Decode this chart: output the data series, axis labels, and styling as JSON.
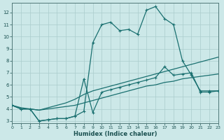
{
  "background_color": "#cce8e8",
  "grid_color": "#aacccc",
  "line_color": "#1a7070",
  "xlabel": "Humidex (Indice chaleur)",
  "xlim": [
    0,
    23
  ],
  "ylim": [
    2.8,
    12.8
  ],
  "xticks": [
    0,
    1,
    2,
    3,
    4,
    5,
    6,
    7,
    8,
    9,
    10,
    11,
    12,
    13,
    14,
    15,
    16,
    17,
    18,
    19,
    20,
    21,
    22,
    23
  ],
  "yticks": [
    3,
    4,
    5,
    6,
    7,
    8,
    9,
    10,
    11,
    12
  ],
  "line_peak_x": [
    0,
    1,
    2,
    3,
    4,
    5,
    6,
    7,
    8,
    9,
    10,
    11,
    12,
    13,
    14,
    15,
    16,
    17,
    18,
    19,
    20,
    21,
    22,
    23
  ],
  "line_peak_y": [
    4.3,
    4.0,
    4.0,
    3.0,
    3.1,
    3.2,
    3.2,
    3.4,
    3.8,
    9.5,
    11.0,
    11.2,
    10.5,
    10.6,
    10.2,
    12.2,
    12.5,
    11.5,
    11.0,
    8.0,
    6.8,
    5.5,
    5.5,
    5.5
  ],
  "line_mid_x": [
    0,
    1,
    2,
    3,
    4,
    5,
    6,
    7,
    8,
    9,
    10,
    11,
    12,
    13,
    14,
    15,
    16,
    17,
    18,
    19,
    20,
    21,
    22,
    23
  ],
  "line_mid_y": [
    4.3,
    4.0,
    4.0,
    3.0,
    3.1,
    3.2,
    3.2,
    3.4,
    6.5,
    3.7,
    5.4,
    5.6,
    5.8,
    6.0,
    6.2,
    6.4,
    6.6,
    7.5,
    6.8,
    6.9,
    7.0,
    5.4,
    5.4,
    5.5
  ],
  "line_upper_x": [
    0,
    1,
    2,
    3,
    4,
    5,
    6,
    7,
    8,
    9,
    10,
    11,
    12,
    13,
    14,
    15,
    16,
    17,
    18,
    19,
    20,
    21,
    22,
    23
  ],
  "line_upper_y": [
    4.3,
    4.1,
    4.0,
    3.9,
    4.1,
    4.3,
    4.5,
    4.8,
    5.2,
    5.5,
    5.7,
    5.9,
    6.1,
    6.3,
    6.5,
    6.7,
    6.9,
    7.1,
    7.3,
    7.5,
    7.7,
    7.9,
    8.1,
    8.3
  ],
  "line_lower_x": [
    0,
    1,
    2,
    3,
    4,
    5,
    6,
    7,
    8,
    9,
    10,
    11,
    12,
    13,
    14,
    15,
    16,
    17,
    18,
    19,
    20,
    21,
    22,
    23
  ],
  "line_lower_y": [
    4.3,
    4.0,
    4.0,
    3.9,
    4.0,
    4.1,
    4.2,
    4.3,
    4.5,
    4.7,
    4.9,
    5.1,
    5.3,
    5.5,
    5.7,
    5.9,
    6.0,
    6.2,
    6.3,
    6.5,
    6.6,
    6.7,
    6.8,
    6.9
  ]
}
